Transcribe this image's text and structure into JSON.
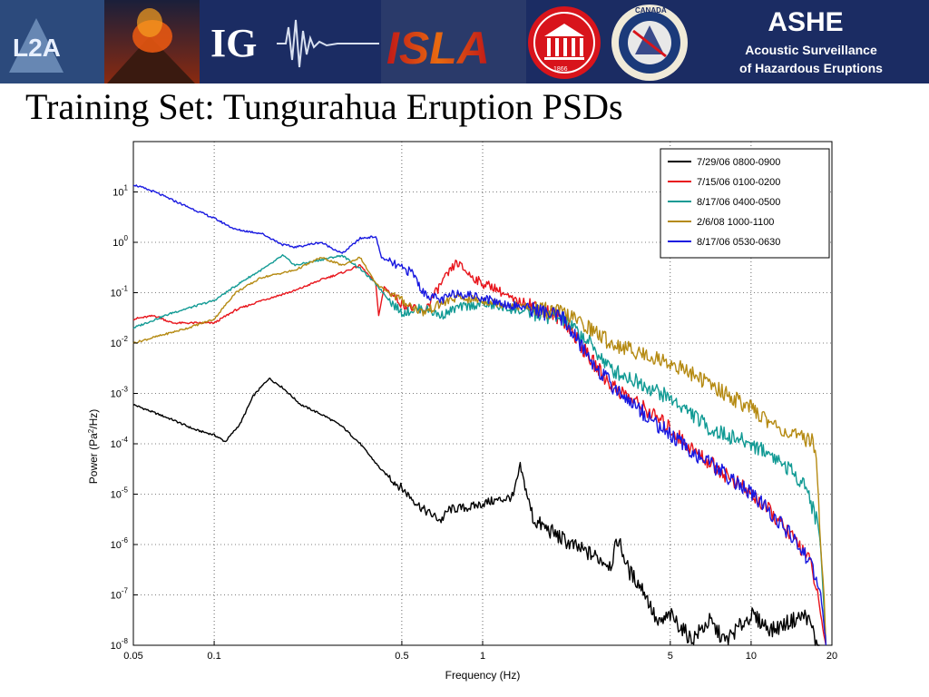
{
  "banner": {
    "logo_l2a": "L2A",
    "logo_ig": "IG",
    "logo_isla": "ISLA",
    "seal_year": "1866",
    "canada_seal": "CANADA",
    "ashe_title": "ASHE",
    "ashe_line1": "Acoustic Surveillance",
    "ashe_line2": "of Hazardous Eruptions"
  },
  "slide_title": "Training Set: Tungurahua Eruption PSDs",
  "colors": {
    "black": "#000000",
    "red": "#e8141b",
    "teal": "#119a94",
    "gold": "#b58a12",
    "blue": "#1818e0",
    "banner": "#1b2c63"
  },
  "chart_data": {
    "type": "line",
    "title": "",
    "xlabel": "Frequency (Hz)",
    "ylabel_prefix": "Power (Pa",
    "ylabel_sup": "2",
    "ylabel_suffix": "/Hz)",
    "xscale": "log",
    "yscale": "log",
    "xlim": [
      0.05,
      20
    ],
    "ylim": [
      1e-08,
      100
    ],
    "grid": "dotted",
    "legend_position": "top-right",
    "xticks": [
      {
        "value": 0.05,
        "label": "0.05"
      },
      {
        "value": 0.1,
        "label": "0.1"
      },
      {
        "value": 0.5,
        "label": "0.5"
      },
      {
        "value": 1,
        "label": "1"
      },
      {
        "value": 5,
        "label": "5"
      },
      {
        "value": 10,
        "label": "10"
      },
      {
        "value": 20,
        "label": "20"
      }
    ],
    "yticks": [
      {
        "value": 1e-08,
        "exp": "-8"
      },
      {
        "value": 1e-07,
        "exp": "-7"
      },
      {
        "value": 1e-06,
        "exp": "-6"
      },
      {
        "value": 1e-05,
        "exp": "-5"
      },
      {
        "value": 0.0001,
        "exp": "-4"
      },
      {
        "value": 0.001,
        "exp": "-3"
      },
      {
        "value": 0.01,
        "exp": "-2"
      },
      {
        "value": 0.1,
        "exp": "-1"
      },
      {
        "value": 1,
        "exp": "0"
      },
      {
        "value": 10,
        "exp": "1"
      }
    ],
    "series": [
      {
        "name": "7/29/06 0800-0900",
        "color": "#000000",
        "points": [
          [
            0.05,
            0.0006
          ],
          [
            0.07,
            0.0003
          ],
          [
            0.085,
            0.00019
          ],
          [
            0.1,
            0.00015
          ],
          [
            0.11,
            0.00011
          ],
          [
            0.125,
            0.00025
          ],
          [
            0.14,
            0.0009
          ],
          [
            0.16,
            0.002
          ],
          [
            0.18,
            0.0013
          ],
          [
            0.21,
            0.0006
          ],
          [
            0.26,
            0.00035
          ],
          [
            0.3,
            0.00022
          ],
          [
            0.35,
            0.0001
          ],
          [
            0.42,
            3e-05
          ],
          [
            0.5,
            1.3e-05
          ],
          [
            0.6,
            5e-06
          ],
          [
            0.7,
            3e-06
          ],
          [
            0.75,
            5e-06
          ],
          [
            0.9,
            5.5e-06
          ],
          [
            1.05,
            7e-06
          ],
          [
            1.2,
            8e-06
          ],
          [
            1.3,
            9e-06
          ],
          [
            1.38,
            3.5e-05
          ],
          [
            1.45,
            1.2e-05
          ],
          [
            1.55,
            3e-06
          ],
          [
            1.8,
            1.8e-06
          ],
          [
            2.2,
            9e-07
          ],
          [
            2.6,
            6e-07
          ],
          [
            3.0,
            4e-07
          ],
          [
            3.2,
            1.3e-06
          ],
          [
            3.5,
            3e-07
          ],
          [
            4.0,
            1.2e-07
          ],
          [
            4.5,
            2.5e-08
          ],
          [
            5,
            4e-08
          ],
          [
            6,
            1.3e-08
          ],
          [
            7,
            3e-08
          ],
          [
            8,
            1.2e-08
          ],
          [
            10,
            4e-08
          ],
          [
            12,
            2e-08
          ],
          [
            14,
            3e-08
          ],
          [
            16,
            4e-08
          ],
          [
            17,
            2e-08
          ],
          [
            18,
            5e-09
          ]
        ]
      },
      {
        "name": "7/15/06 0100-0200",
        "color": "#e8141b",
        "points": [
          [
            0.05,
            0.03
          ],
          [
            0.06,
            0.035
          ],
          [
            0.07,
            0.025
          ],
          [
            0.1,
            0.025
          ],
          [
            0.12,
            0.045
          ],
          [
            0.15,
            0.07
          ],
          [
            0.2,
            0.11
          ],
          [
            0.25,
            0.18
          ],
          [
            0.3,
            0.25
          ],
          [
            0.35,
            0.35
          ],
          [
            0.4,
            0.15
          ],
          [
            0.41,
            0.035
          ],
          [
            0.43,
            0.13
          ],
          [
            0.5,
            0.06
          ],
          [
            0.6,
            0.04
          ],
          [
            0.7,
            0.15
          ],
          [
            0.8,
            0.4
          ],
          [
            0.9,
            0.22
          ],
          [
            1.0,
            0.15
          ],
          [
            1.1,
            0.13
          ],
          [
            1.3,
            0.07
          ],
          [
            1.5,
            0.06
          ],
          [
            2.0,
            0.03
          ],
          [
            2.5,
            0.005
          ],
          [
            3,
            0.0015
          ],
          [
            4,
            0.0005
          ],
          [
            5,
            0.0002
          ],
          [
            6,
            8e-05
          ],
          [
            8,
            2.5e-05
          ],
          [
            10,
            1e-05
          ],
          [
            12,
            4e-06
          ],
          [
            14,
            1.5e-06
          ],
          [
            16,
            7e-07
          ],
          [
            17,
            3e-07
          ],
          [
            18,
            5e-08
          ],
          [
            19,
            1e-08
          ]
        ]
      },
      {
        "name": "8/17/06 0400-0500",
        "color": "#119a94",
        "points": [
          [
            0.05,
            0.02
          ],
          [
            0.07,
            0.04
          ],
          [
            0.1,
            0.07
          ],
          [
            0.13,
            0.18
          ],
          [
            0.16,
            0.35
          ],
          [
            0.18,
            0.55
          ],
          [
            0.2,
            0.35
          ],
          [
            0.25,
            0.45
          ],
          [
            0.3,
            0.55
          ],
          [
            0.35,
            0.3
          ],
          [
            0.4,
            0.15
          ],
          [
            0.45,
            0.07
          ],
          [
            0.5,
            0.04
          ],
          [
            0.6,
            0.05
          ],
          [
            0.7,
            0.035
          ],
          [
            0.8,
            0.05
          ],
          [
            1.0,
            0.06
          ],
          [
            1.2,
            0.05
          ],
          [
            1.5,
            0.04
          ],
          [
            2.0,
            0.03
          ],
          [
            2.5,
            0.01
          ],
          [
            3,
            0.003
          ],
          [
            4,
            0.0015
          ],
          [
            5,
            0.0008
          ],
          [
            6,
            0.0004
          ],
          [
            7,
            0.0002
          ],
          [
            8,
            0.00015
          ],
          [
            10,
            0.0001
          ],
          [
            12,
            6e-05
          ],
          [
            14,
            3e-05
          ],
          [
            16,
            1.5e-05
          ],
          [
            17,
            5e-06
          ],
          [
            18,
            2e-06
          ],
          [
            18.7,
            5e-08
          ],
          [
            19,
            1e-08
          ]
        ]
      },
      {
        "name": "2/6/08 1000-1100",
        "color": "#b58a12",
        "points": [
          [
            0.05,
            0.01
          ],
          [
            0.08,
            0.02
          ],
          [
            0.1,
            0.03
          ],
          [
            0.12,
            0.1
          ],
          [
            0.15,
            0.2
          ],
          [
            0.2,
            0.28
          ],
          [
            0.25,
            0.5
          ],
          [
            0.3,
            0.35
          ],
          [
            0.35,
            0.5
          ],
          [
            0.4,
            0.15
          ],
          [
            0.5,
            0.07
          ],
          [
            0.6,
            0.04
          ],
          [
            0.7,
            0.06
          ],
          [
            0.8,
            0.08
          ],
          [
            1.0,
            0.07
          ],
          [
            1.2,
            0.06
          ],
          [
            1.5,
            0.05
          ],
          [
            2,
            0.04
          ],
          [
            2.5,
            0.02
          ],
          [
            3,
            0.01
          ],
          [
            4,
            0.006
          ],
          [
            5,
            0.004
          ],
          [
            6,
            0.0025
          ],
          [
            8,
            0.001
          ],
          [
            10,
            0.0005
          ],
          [
            12,
            0.00025
          ],
          [
            14,
            0.00015
          ],
          [
            16,
            0.00012
          ],
          [
            17,
            0.00013
          ],
          [
            17.5,
            5e-05
          ],
          [
            18,
            2e-06
          ],
          [
            18.7,
            1e-07
          ],
          [
            19,
            1e-08
          ]
        ]
      },
      {
        "name": "8/17/06 0530-0630",
        "color": "#1818e0",
        "points": [
          [
            0.05,
            14
          ],
          [
            0.06,
            10
          ],
          [
            0.08,
            5
          ],
          [
            0.1,
            3
          ],
          [
            0.12,
            1.8
          ],
          [
            0.15,
            1.5
          ],
          [
            0.18,
            0.9
          ],
          [
            0.2,
            0.8
          ],
          [
            0.25,
            1.0
          ],
          [
            0.3,
            0.6
          ],
          [
            0.35,
            1.2
          ],
          [
            0.4,
            1.3
          ],
          [
            0.42,
            0.5
          ],
          [
            0.5,
            0.3
          ],
          [
            0.55,
            0.25
          ],
          [
            0.6,
            0.1
          ],
          [
            0.7,
            0.07
          ],
          [
            0.8,
            0.1
          ],
          [
            1.0,
            0.08
          ],
          [
            1.2,
            0.06
          ],
          [
            1.5,
            0.05
          ],
          [
            2,
            0.03
          ],
          [
            2.5,
            0.005
          ],
          [
            3,
            0.0015
          ],
          [
            4,
            0.0004
          ],
          [
            5,
            0.00015
          ],
          [
            6,
            7e-05
          ],
          [
            8,
            2.5e-05
          ],
          [
            10,
            1e-05
          ],
          [
            12,
            4e-06
          ],
          [
            14,
            1.5e-06
          ],
          [
            16,
            6e-07
          ],
          [
            17,
            3e-07
          ],
          [
            18,
            1.5e-07
          ],
          [
            18.8,
            2e-08
          ],
          [
            19,
            1e-08
          ]
        ]
      }
    ]
  }
}
